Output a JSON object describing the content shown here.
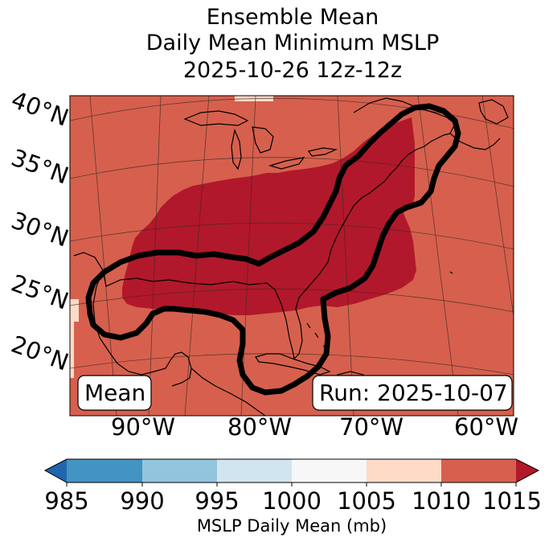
{
  "title": {
    "line1": "Ensemble Mean",
    "line2": "Daily Mean Minimum MSLP",
    "line3": "2025-10-26 12z-12z"
  },
  "map": {
    "lat_labels": [
      "40°N",
      "35°N",
      "30°N",
      "25°N",
      "20°N"
    ],
    "lon_labels": [
      "90°W",
      "80°W",
      "70°W",
      "60°W"
    ],
    "mean_box": "Mean",
    "run_box": "Run: 2025-10-07",
    "fill_colors": {
      "background_1010_1015": "#d6604d",
      "low_1005_1010": "#b2182b",
      "high_1005_1010_light": "#fddbc7"
    },
    "contour_color": "#000000"
  },
  "colorbar": {
    "ticks": [
      "985",
      "990",
      "995",
      "1000",
      "1005",
      "1010",
      "1015"
    ],
    "colors": [
      "#2166ac",
      "#4393c3",
      "#92c5de",
      "#d1e5f0",
      "#f7f7f7",
      "#fddbc7",
      "#d6604d",
      "#b2182b"
    ],
    "label": "MSLP Daily Mean (mb)"
  }
}
